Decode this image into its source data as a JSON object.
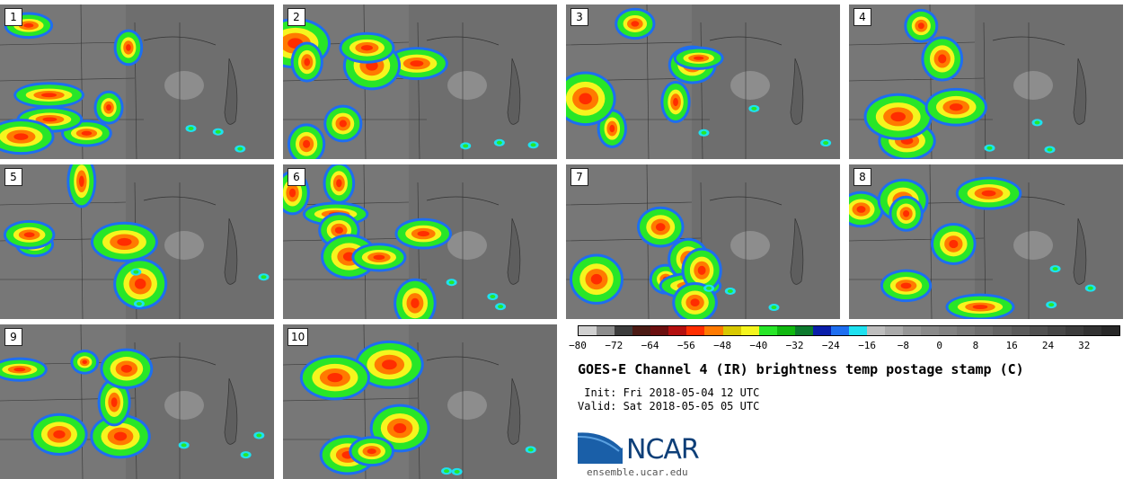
{
  "panels": [
    {
      "number": "1"
    },
    {
      "number": "2"
    },
    {
      "number": "3"
    },
    {
      "number": "4"
    },
    {
      "number": "5"
    },
    {
      "number": "6"
    },
    {
      "number": "7"
    },
    {
      "number": "8"
    },
    {
      "number": "9"
    },
    {
      "number": "10"
    }
  ],
  "colorbar": {
    "colors": [
      "#d0d0d0",
      "#8c8c8c",
      "#3c3c3c",
      "#4b1a14",
      "#6b0f0f",
      "#b40f0f",
      "#ff2d00",
      "#ff7a00",
      "#d8c800",
      "#f5f51e",
      "#28e628",
      "#10b810",
      "#0c7a2d",
      "#0a1eaa",
      "#1e6ef0",
      "#1ee1f0",
      "#bebebe",
      "#aaaaaa",
      "#969696",
      "#8a8a8a",
      "#828282",
      "#787878",
      "#6e6e6e",
      "#646464",
      "#5a5a5a",
      "#505050",
      "#464646",
      "#3c3c3c",
      "#323232",
      "#282828"
    ],
    "ticks": [
      "−80",
      "−72",
      "−64",
      "−56",
      "−48",
      "−40",
      "−32",
      "−24",
      "−16",
      "−8",
      "0",
      "8",
      "16",
      "24",
      "32"
    ]
  },
  "title": "GOES-E Channel 4 (IR) brightness temp postage stamp (C)",
  "init_line": " Init: Fri 2018-05-04 12 UTC",
  "valid_line": "Valid: Sat 2018-05-05 05 UTC",
  "logo": {
    "name": "NCAR",
    "url": "ensemble.ucar.edu"
  }
}
